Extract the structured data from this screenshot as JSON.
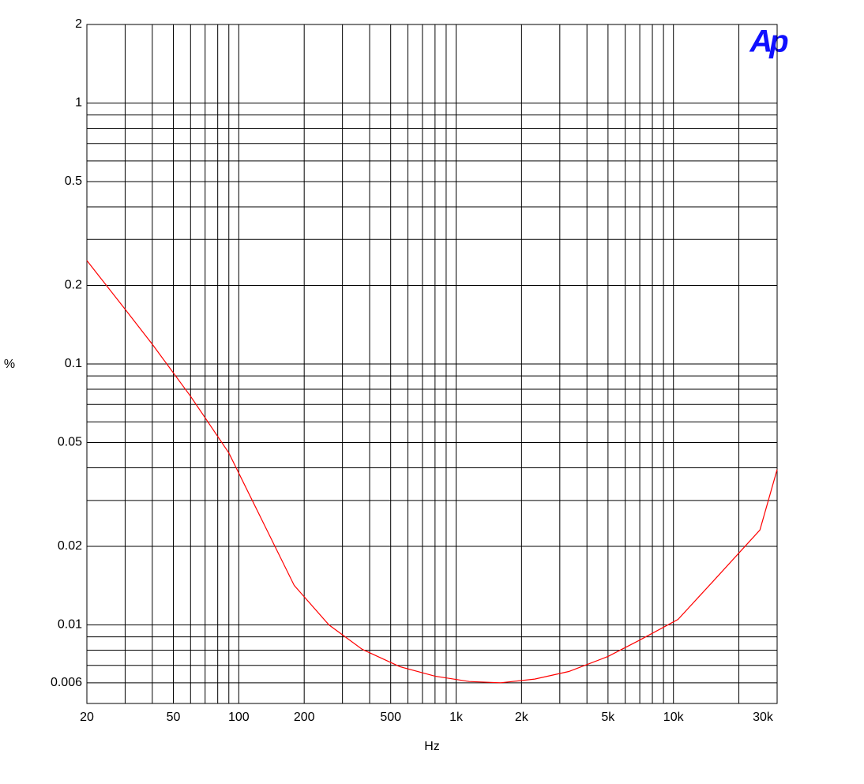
{
  "chart_data": {
    "type": "line",
    "logo": "Ap",
    "xlabel": "Hz",
    "ylabel": "%",
    "xscale": "log",
    "yscale": "log",
    "grid": true,
    "x": [
      20,
      30,
      40,
      60,
      90,
      180,
      260,
      370,
      550,
      800,
      1150,
      1600,
      2300,
      3300,
      5000,
      7000,
      10500,
      15000,
      25000,
      30000
    ],
    "series": [
      {
        "color": "#ff0000",
        "values": [
          0.249,
          0.162,
          0.119,
          0.0752,
          0.0456,
          0.01416,
          0.01,
          0.00806,
          0.00692,
          0.00636,
          0.00607,
          0.006,
          0.0062,
          0.00663,
          0.00757,
          0.00875,
          0.0105,
          0.0145,
          0.0231,
          0.0394
        ]
      }
    ],
    "xlim": [
      20,
      30000
    ],
    "xticks": [
      20,
      50,
      100,
      200,
      500,
      {
        "value": 1000,
        "label": "1k"
      },
      {
        "value": 2000,
        "label": "2k"
      },
      {
        "value": 5000,
        "label": "5k"
      },
      {
        "value": 10000,
        "label": "10k"
      },
      {
        "value": 30000,
        "label": "30k"
      }
    ],
    "xminorticks": [
      30,
      40,
      60,
      70,
      80,
      90,
      300,
      400,
      600,
      700,
      800,
      900,
      3000,
      4000,
      6000,
      7000,
      8000,
      9000,
      20000
    ],
    "ylim": [
      0.005,
      2
    ],
    "yticks": [
      2,
      1,
      0.5,
      0.2,
      0.1,
      0.05,
      0.02,
      0.01,
      0.006
    ],
    "yminorticks": [
      0.9,
      0.8,
      0.7,
      0.6,
      0.4,
      0.3,
      0.09,
      0.08,
      0.07,
      0.06,
      0.04,
      0.03,
      0.009,
      0.008,
      0.007
    ]
  }
}
